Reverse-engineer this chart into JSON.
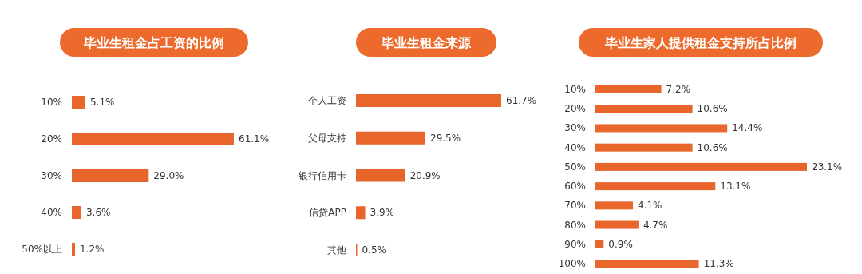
{
  "chart_data": [
    {
      "type": "bar",
      "orientation": "horizontal",
      "title": "毕业生租金占工资的比例",
      "categories": [
        "10%",
        "20%",
        "30%",
        "40%",
        "50%以上"
      ],
      "values": [
        5.1,
        61.1,
        29.0,
        3.6,
        1.2
      ],
      "value_labels": [
        "5.1%",
        "61.1%",
        "29.0%",
        "3.6%",
        "1.2%"
      ],
      "color": "#e8652b"
    },
    {
      "type": "bar",
      "orientation": "horizontal",
      "title": "毕业生租金来源",
      "categories": [
        "个人工资",
        "父母支持",
        "银行信用卡",
        "信贷APP",
        "其他"
      ],
      "values": [
        61.7,
        29.5,
        20.9,
        3.9,
        0.5
      ],
      "value_labels": [
        "61.7%",
        "29.5%",
        "20.9%",
        "3.9%",
        "0.5%"
      ],
      "color": "#e8652b"
    },
    {
      "type": "bar",
      "orientation": "horizontal",
      "title": "毕业生家人提供租金支持所占比例",
      "categories": [
        "10%",
        "20%",
        "30%",
        "40%",
        "50%",
        "60%",
        "70%",
        "80%",
        "90%",
        "100%"
      ],
      "values": [
        7.2,
        10.6,
        14.4,
        10.6,
        23.1,
        13.1,
        4.1,
        4.7,
        0.9,
        11.3
      ],
      "value_labels": [
        "7.2%",
        "10.6%",
        "14.4%",
        "10.6%",
        "23.1%",
        "13.1%",
        "4.1%",
        "4.7%",
        "0.9%",
        "11.3%"
      ],
      "color": "#e8652b"
    }
  ]
}
